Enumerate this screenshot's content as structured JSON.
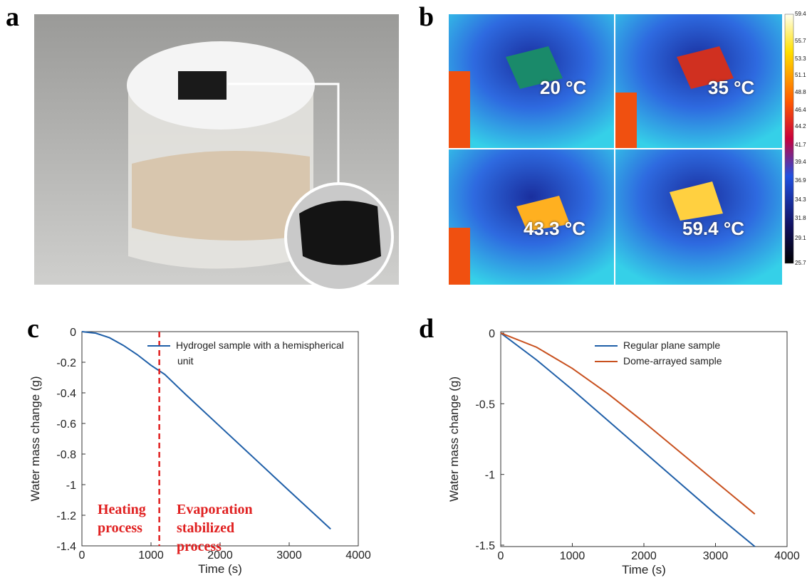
{
  "panels": {
    "labels": [
      "a",
      "b",
      "c",
      "d"
    ]
  },
  "thermal": {
    "readings": [
      "20 °C",
      "35 °C",
      "43.3 °C",
      "59.4 °C"
    ],
    "colorbar_ticks": [
      59.4,
      55.7,
      53.3,
      51.1,
      48.8,
      46.4,
      44.2,
      41.7,
      39.4,
      36.9,
      34.3,
      31.8,
      29.1,
      25.7
    ]
  },
  "chart_data": [
    {
      "type": "line",
      "xlabel": "Time (s)",
      "ylabel": "Water mass change (g)",
      "xlim": [
        0,
        4000
      ],
      "xticks": [
        0,
        1000,
        2000,
        3000,
        4000
      ],
      "ylim": [
        -1.4,
        0
      ],
      "yticks": [
        0,
        -0.2,
        -0.4,
        -0.6,
        -0.8,
        -1,
        -1.2,
        -1.4
      ],
      "x": [
        0,
        200,
        400,
        600,
        800,
        1000,
        1200,
        1500,
        2000,
        2500,
        3000,
        3600
      ],
      "series": [
        {
          "name": "Hydrogel sample with a hemispherical unit",
          "color": "#1f5fa8",
          "values": [
            0,
            -0.01,
            -0.04,
            -0.09,
            -0.15,
            -0.22,
            -0.28,
            -0.41,
            -0.62,
            -0.83,
            -1.04,
            -1.29
          ]
        }
      ],
      "legend": "upper right",
      "vline": {
        "x": 1120,
        "color": "#e02020"
      },
      "annotations": [
        "Heating process",
        "Evaporation stabilized process"
      ],
      "annotation_color": "#e02020"
    },
    {
      "type": "line",
      "xlabel": "Time (s)",
      "ylabel": "Water mass change (g)",
      "xlim": [
        0,
        4000
      ],
      "xticks": [
        0,
        1000,
        2000,
        3000,
        4000
      ],
      "ylim": [
        -1.51,
        0.01
      ],
      "yticks": [
        0,
        -0.5,
        -1,
        -1.5
      ],
      "x": [
        0,
        500,
        1000,
        1500,
        2000,
        2500,
        3000,
        3550
      ],
      "series": [
        {
          "name": "Regular plane sample",
          "color": "#1f5fa8",
          "values": [
            0,
            -0.19,
            -0.4,
            -0.62,
            -0.84,
            -1.06,
            -1.28,
            -1.51
          ]
        },
        {
          "name": "Dome-arrayed sample",
          "color": "#c8501e",
          "values": [
            0,
            -0.1,
            -0.25,
            -0.43,
            -0.63,
            -0.84,
            -1.05,
            -1.28
          ]
        }
      ],
      "legend": "upper right"
    }
  ]
}
